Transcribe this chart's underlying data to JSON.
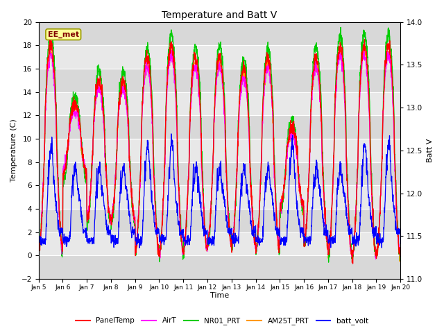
{
  "title": "Temperature and Batt V",
  "ylabel_left": "Temperature (C)",
  "ylabel_right": "Batt V",
  "xlabel": "Time",
  "ylim_left": [
    -2,
    20
  ],
  "ylim_right": [
    11.0,
    14.0
  ],
  "xlim": [
    0,
    15
  ],
  "xtick_labels": [
    "Jan 5",
    "Jan 6",
    "Jan 7",
    "Jan 8",
    "Jan 9",
    "Jan 10",
    "Jan 11",
    "Jan 12",
    "Jan 13",
    "Jan 14",
    "Jan 15",
    "Jan 16",
    "Jan 17",
    "Jan 18",
    "Jan 19",
    "Jan 20"
  ],
  "yticks_left": [
    -2,
    0,
    2,
    4,
    6,
    8,
    10,
    12,
    14,
    16,
    18,
    20
  ],
  "yticks_right": [
    11.0,
    11.5,
    12.0,
    12.5,
    13.0,
    13.5,
    14.0
  ],
  "colors": {
    "PanelTemp": "#ff0000",
    "AirT": "#ff00ff",
    "NR01_PRT": "#00cc00",
    "AM25T_PRT": "#ff9900",
    "batt_volt": "#0000ff"
  },
  "station_label": "EE_met",
  "bg_color": "#d8d8d8",
  "bg_color2": "#e8e8e8",
  "legend_entries": [
    "PanelTemp",
    "AirT",
    "NR01_PRT",
    "AM25T_PRT",
    "batt_volt"
  ],
  "figsize": [
    6.4,
    4.8
  ],
  "dpi": 100
}
